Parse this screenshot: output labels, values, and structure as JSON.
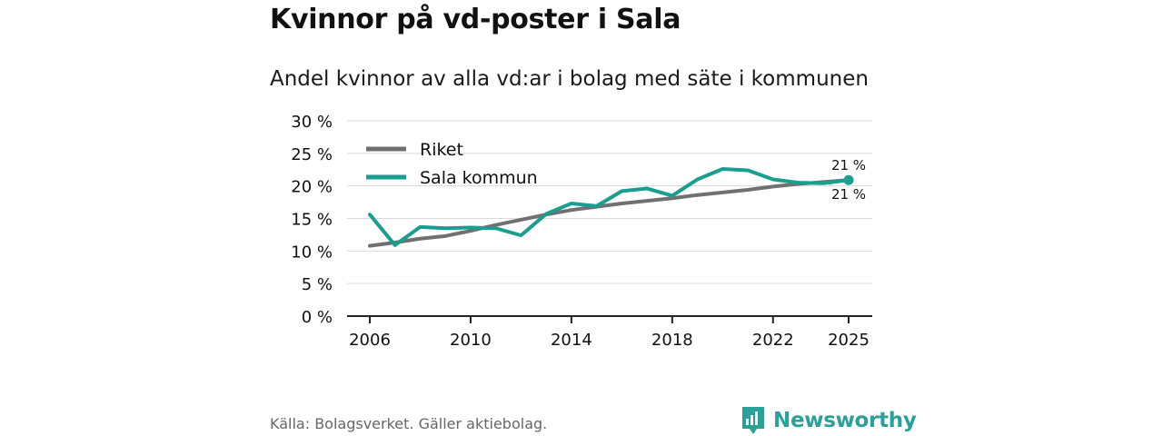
{
  "header": {
    "title": "Kvinnor på vd-poster i Sala",
    "subtitle": "Andel kvinnor av alla vd:ar i bolag med säte i kommunen"
  },
  "footer": {
    "source": "Källa: Bolagsverket. Gäller aktiebolag.",
    "brand": "Newsworthy",
    "brand_icon": "bar-chart-logo-icon"
  },
  "colors": {
    "riket": "#707070",
    "sala": "#1a9e8f",
    "grid": "#d9d9d9",
    "axis": "#222222",
    "brand": "#2aa198"
  },
  "chart_data": {
    "type": "line",
    "title": "Kvinnor på vd-poster i Sala",
    "subtitle": "Andel kvinnor av alla vd:ar i bolag med säte i kommunen",
    "xlabel": "",
    "ylabel": "",
    "x": [
      2006,
      2007,
      2008,
      2009,
      2010,
      2011,
      2012,
      2013,
      2014,
      2015,
      2016,
      2017,
      2018,
      2019,
      2020,
      2021,
      2022,
      2023,
      2024,
      2025
    ],
    "xlim": [
      2006,
      2025
    ],
    "ylim": [
      0,
      30
    ],
    "x_ticks": [
      2006,
      2010,
      2014,
      2018,
      2022,
      2025
    ],
    "x_tick_labels": [
      "2006",
      "2010",
      "2014",
      "2018",
      "2022",
      "2025"
    ],
    "y_ticks": [
      0,
      5,
      10,
      15,
      20,
      25,
      30
    ],
    "y_tick_labels": [
      "0 %",
      "5 %",
      "10 %",
      "15 %",
      "20 %",
      "25 %",
      "30 %"
    ],
    "grid": true,
    "legend_position": "top-left",
    "series": [
      {
        "name": "Riket",
        "values": [
          10.8,
          11.3,
          11.9,
          12.3,
          13.1,
          14.0,
          14.8,
          15.6,
          16.3,
          16.8,
          17.3,
          17.7,
          18.1,
          18.6,
          19.0,
          19.4,
          19.9,
          20.3,
          20.6,
          20.9
        ],
        "end_label": "21 %"
      },
      {
        "name": "Sala kommun",
        "values": [
          15.6,
          10.9,
          13.7,
          13.5,
          13.6,
          13.5,
          12.4,
          15.7,
          17.3,
          16.9,
          19.2,
          19.6,
          18.5,
          21.0,
          22.6,
          22.4,
          21.0,
          20.5,
          20.4,
          20.9
        ],
        "end_label": "21 %"
      }
    ]
  }
}
